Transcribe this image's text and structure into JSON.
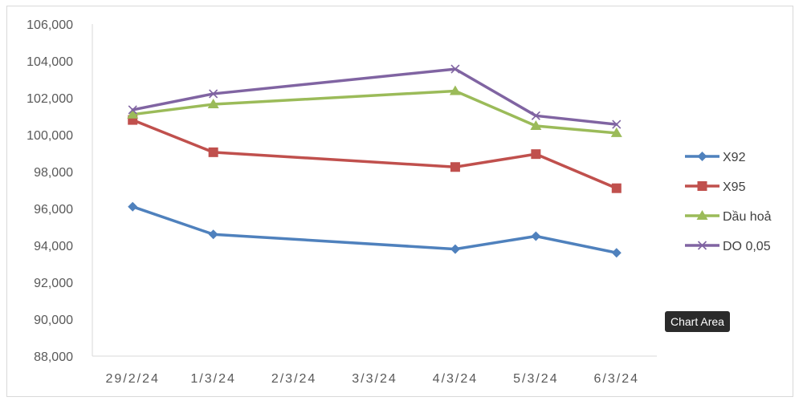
{
  "chart_data": {
    "type": "line",
    "categories": [
      "29/2/24",
      "1/3/24",
      "2/3/24",
      "3/3/24",
      "4/3/24",
      "5/3/24",
      "6/3/24"
    ],
    "ylim": [
      88000,
      106000
    ],
    "yticks": [
      "88,000",
      "90,000",
      "92,000",
      "94,000",
      "96,000",
      "98,000",
      "100,000",
      "102,000",
      "104,000",
      "106,000"
    ],
    "ytick_values": [
      88000,
      90000,
      92000,
      94000,
      96000,
      98000,
      100000,
      102000,
      104000,
      106000
    ],
    "grid": false,
    "legend_position": "right",
    "series": [
      {
        "name": "X92",
        "color": "#4f81bd",
        "marker": "diamond",
        "values": [
          96100,
          94600,
          null,
          null,
          93800,
          94500,
          93600
        ]
      },
      {
        "name": "X95",
        "color": "#c0504d",
        "marker": "square",
        "values": [
          100800,
          99050,
          null,
          null,
          98250,
          98950,
          97100
        ]
      },
      {
        "name": "Dầu hoả",
        "color": "#9bbb59",
        "marker": "triangle",
        "values": [
          101100,
          101650,
          null,
          null,
          102370,
          100480,
          100090
        ]
      },
      {
        "name": "DO 0,05",
        "color": "#8064a2",
        "marker": "x",
        "values": [
          101350,
          102220,
          null,
          null,
          103560,
          101030,
          100560
        ]
      }
    ]
  },
  "tooltip": {
    "text": "Chart Area"
  }
}
